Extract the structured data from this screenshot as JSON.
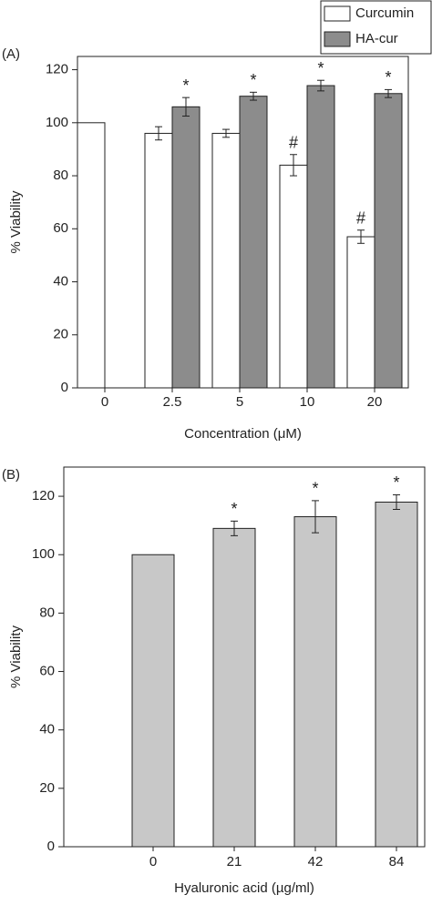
{
  "chart_data": [
    {
      "type": "bar",
      "panel": "(A)",
      "xlabel": "Concentration (μM)",
      "ylabel": "% Viability",
      "categories": [
        "0",
        "2.5",
        "5",
        "10",
        "20"
      ],
      "series": [
        {
          "name": "Curcumin",
          "color": "#ffffff",
          "values": [
            100,
            96,
            96,
            84,
            57
          ],
          "errors": [
            0,
            2.5,
            1.5,
            4,
            2.5
          ],
          "markers": [
            null,
            null,
            null,
            "#",
            "#"
          ]
        },
        {
          "name": "HA-cur",
          "color": "#8c8c8c",
          "values": [
            null,
            106,
            110,
            114,
            111
          ],
          "errors": [
            null,
            3.5,
            1.5,
            2,
            1.5
          ],
          "markers": [
            null,
            "*",
            "*",
            "*",
            "*"
          ]
        }
      ],
      "ylim": [
        0,
        125
      ],
      "yticks": [
        0,
        20,
        40,
        60,
        80,
        100,
        120
      ],
      "legend": "upper right"
    },
    {
      "type": "bar",
      "panel": "(B)",
      "xlabel": "Hyaluronic acid (µg/ml)",
      "ylabel": "% Viability",
      "categories": [
        "0",
        "21",
        "42",
        "84"
      ],
      "series": [
        {
          "color": "#c8c8c8",
          "values": [
            100,
            109,
            113,
            118
          ],
          "errors": [
            0,
            2.5,
            5.5,
            2.5
          ],
          "markers": [
            null,
            "*",
            "*",
            "*"
          ]
        }
      ],
      "ylim": [
        0,
        130
      ],
      "yticks": [
        0,
        20,
        40,
        60,
        80,
        100,
        120
      ]
    }
  ]
}
